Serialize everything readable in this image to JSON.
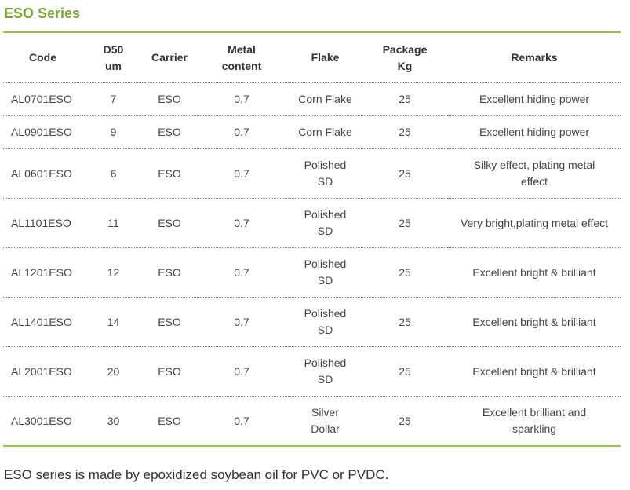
{
  "title": "ESO Series",
  "table": {
    "headers": {
      "code": "Code",
      "d50_line1": "D50",
      "d50_line2": "um",
      "carrier": "Carrier",
      "metal_line1": "Metal",
      "metal_line2": "content",
      "flake": "Flake",
      "package_line1": "Package",
      "package_line2": "Kg",
      "remarks": "Remarks"
    },
    "rows": [
      {
        "code": "AL0701ESO",
        "d50": "7",
        "carrier": "ESO",
        "metal": "0.7",
        "flake_line1": "Corn Flake",
        "flake_line2": "",
        "package": "25",
        "remarks_line1": "Excellent hiding power",
        "remarks_line2": ""
      },
      {
        "code": "AL0901ESO",
        "d50": "9",
        "carrier": "ESO",
        "metal": "0.7",
        "flake_line1": "Corn Flake",
        "flake_line2": "",
        "package": "25",
        "remarks_line1": "Excellent hiding power",
        "remarks_line2": ""
      },
      {
        "code": "AL0601ESO",
        "d50": "6",
        "carrier": "ESO",
        "metal": "0.7",
        "flake_line1": "Polished",
        "flake_line2": "SD",
        "package": "25",
        "remarks_line1": "Silky effect, plating metal",
        "remarks_line2": "effect"
      },
      {
        "code": "AL1101ESO",
        "d50": "11",
        "carrier": "ESO",
        "metal": "0.7",
        "flake_line1": "Polished",
        "flake_line2": "SD",
        "package": "25",
        "remarks_line1": "Very bright,plating metal effect",
        "remarks_line2": ""
      },
      {
        "code": "AL1201ESO",
        "d50": "12",
        "carrier": "ESO",
        "metal": "0.7",
        "flake_line1": "Polished",
        "flake_line2": "SD",
        "package": "25",
        "remarks_line1": "Excellent bright & brilliant",
        "remarks_line2": ""
      },
      {
        "code": "AL1401ESO",
        "d50": "14",
        "carrier": "ESO",
        "metal": "0.7",
        "flake_line1": "Polished",
        "flake_line2": "SD",
        "package": "25",
        "remarks_line1": "Excellent bright & brilliant",
        "remarks_line2": ""
      },
      {
        "code": "AL2001ESO",
        "d50": "20",
        "carrier": "ESO",
        "metal": "0.7",
        "flake_line1": "Polished",
        "flake_line2": "SD",
        "package": "25",
        "remarks_line1": "Excellent bright & brilliant",
        "remarks_line2": ""
      },
      {
        "code": "AL3001ESO",
        "d50": "30",
        "carrier": "ESO",
        "metal": "0.7",
        "flake_line1": "Silver",
        "flake_line2": "Dollar",
        "package": "25",
        "remarks_line1": "Excellent brilliant and",
        "remarks_line2": "sparkling"
      }
    ]
  },
  "footnote": "ESO series is made by epoxidized soybean oil for PVC or PVDC.",
  "colors": {
    "accent": "#7aa63c",
    "rule": "#9bbf4f",
    "text": "#333333"
  }
}
